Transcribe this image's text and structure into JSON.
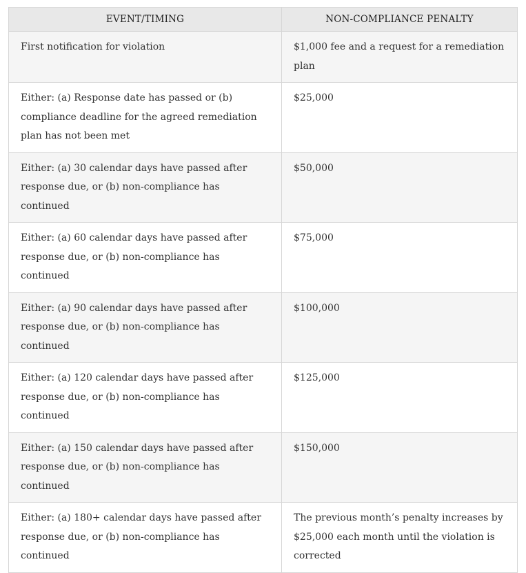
{
  "table": {
    "headers": [
      "EVENT/TIMING",
      "NON-COMPLIANCE PENALTY"
    ],
    "rows": [
      {
        "event": "First notification for violation",
        "penalty": "$1,000 fee and a request for a remediation plan"
      },
      {
        "event": "Either: (a) Response date has passed or (b) compliance deadline for the agreed remediation plan has not been met",
        "penalty": "$25,000"
      },
      {
        "event": "Either: (a) 30 calendar days have passed after response due, or (b) non-compliance has continued",
        "penalty": "$50,000"
      },
      {
        "event": "Either: (a) 60 calendar days have passed after response due, or (b) non-compliance has continued",
        "penalty": "$75,000"
      },
      {
        "event": "Either: (a) 90 calendar days have passed after response due, or (b) non-compliance has continued",
        "penalty": "$100,000"
      },
      {
        "event": "Either: (a) 120 calendar days have passed after response due, or (b) non-compliance has continued",
        "penalty": "$125,000"
      },
      {
        "event": "Either: (a) 150 calendar days have passed after response due, or (b) non-compliance has continued",
        "penalty": "$150,000"
      },
      {
        "event": "Either: (a) 180+ calendar days have passed after response due, or (b) non-compliance has continued",
        "penalty": "The previous month’s penalty increases by $25,000 each month until the violation is corrected"
      }
    ]
  }
}
